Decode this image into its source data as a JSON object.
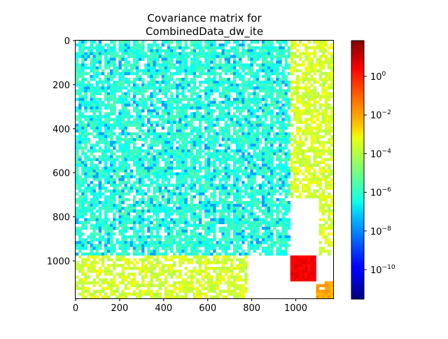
{
  "chart_data": {
    "type": "heatmap",
    "title_lines": [
      "Covariance matrix for",
      "CombinedData_dw_ite"
    ],
    "xlabel": "",
    "ylabel": "",
    "matrix_size": 1170,
    "xlim": [
      0,
      1170
    ],
    "ylim": [
      1170,
      0
    ],
    "x_ticks": [
      0,
      200,
      400,
      600,
      800,
      1000
    ],
    "x_tick_labels": [
      "0",
      "200",
      "400",
      "600",
      "800",
      "1000"
    ],
    "y_ticks": [
      0,
      200,
      400,
      600,
      800,
      1000
    ],
    "y_tick_labels": [
      "0",
      "200",
      "400",
      "600",
      "800",
      "1000"
    ],
    "colormap": "jet",
    "color_scale": "log",
    "color_range": [
      3e-12,
      70
    ],
    "colorbar_ticks": [
      {
        "value": 1e-10,
        "label_base": "10",
        "label_exp": "−10"
      },
      {
        "value": 1e-08,
        "label_base": "10",
        "label_exp": "−8"
      },
      {
        "value": 1e-06,
        "label_base": "10",
        "label_exp": "−6"
      },
      {
        "value": 0.0001,
        "label_base": "10",
        "label_exp": "−4"
      },
      {
        "value": 0.01,
        "label_base": "10",
        "label_exp": "−2"
      },
      {
        "value": 1,
        "label_base": "10",
        "label_exp": "0"
      }
    ],
    "blocks": [
      {
        "name": "block-1",
        "start": 0,
        "end": 480,
        "typical_value": 1e-06
      },
      {
        "name": "block-2",
        "start": 480,
        "end": 980,
        "typical_value": 1e-06
      },
      {
        "name": "block-3",
        "start": 980,
        "end": 1110,
        "typical_value": 0.0001
      },
      {
        "name": "block-4",
        "start": 1110,
        "end": 1170,
        "typical_value": 0.0001
      }
    ],
    "region_values": [
      {
        "rows": [
          0,
          980
        ],
        "cols": [
          0,
          980
        ],
        "value": 1e-06
      },
      {
        "rows": [
          0,
          980
        ],
        "cols": [
          980,
          1170
        ],
        "value": 0.0001
      },
      {
        "rows": [
          980,
          1170
        ],
        "cols": [
          0,
          980
        ],
        "value": 0.0001
      },
      {
        "rows": [
          980,
          1090
        ],
        "cols": [
          980,
          1090
        ],
        "value": 2.0
      },
      {
        "rows": [
          1090,
          1170
        ],
        "cols": [
          1090,
          1170
        ],
        "value": 0.01
      }
    ]
  }
}
